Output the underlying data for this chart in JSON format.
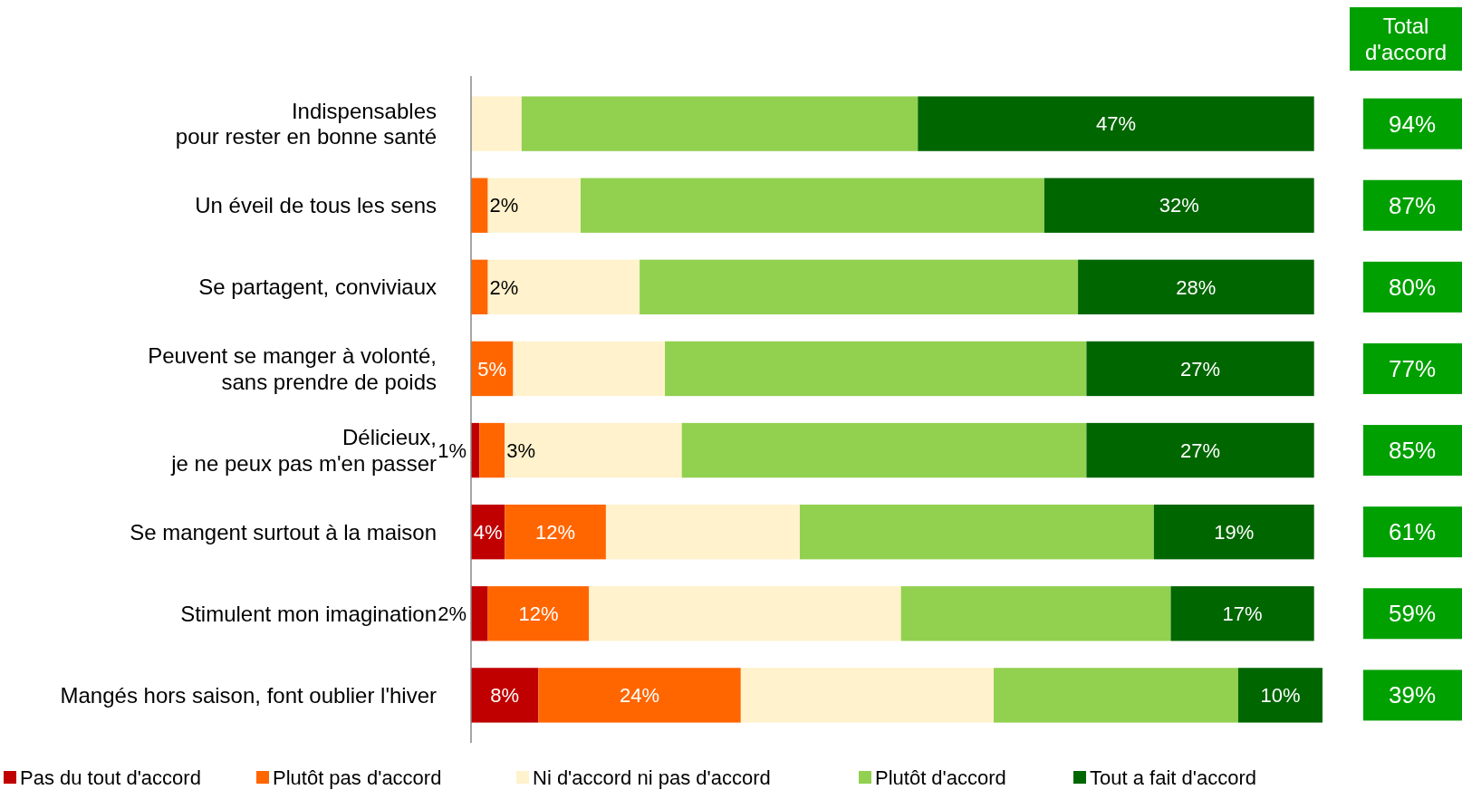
{
  "chart_data": {
    "type": "bar",
    "orientation": "horizontal",
    "stacked": true,
    "legend": "bottom",
    "categories": [
      "Indispensables\npour rester en bonne santé",
      "Un éveil de tous les sens",
      "Se partagent, conviviaux",
      "Peuvent se manger à volonté,\nsans prendre de poids",
      "Délicieux,\nje ne peux pas m'en passer",
      "Se mangent surtout à la maison",
      "Stimulent mon imagination",
      "Mangés hors saison, font oublier l'hiver"
    ],
    "series": [
      {
        "name": "Pas du tout d'accord",
        "color": "#c00000",
        "values": [
          0,
          0,
          0,
          0,
          1,
          4,
          2,
          8
        ],
        "value_labels": [
          null,
          null,
          null,
          null,
          "1%",
          "4%",
          "2%",
          "8%"
        ]
      },
      {
        "name": "Plutôt pas d'accord",
        "color": "#ff6600",
        "values": [
          0,
          2,
          2,
          5,
          3,
          12,
          12,
          24
        ],
        "value_labels": [
          null,
          "2%",
          "2%",
          "5%",
          "3%",
          "12%",
          "12%",
          "24%"
        ]
      },
      {
        "name": "Ni d'accord ni pas d'accord",
        "color": "#fff2cc",
        "values": [
          6,
          11,
          18,
          18,
          21,
          23,
          37,
          30
        ]
      },
      {
        "name": "Plutôt d'accord",
        "color": "#92d050",
        "values": [
          47,
          55,
          52,
          50,
          48,
          42,
          32,
          29
        ]
      },
      {
        "name": "Tout a fait d'accord",
        "color": "#006600",
        "values": [
          47,
          32,
          28,
          27,
          27,
          19,
          17,
          10
        ],
        "value_labels": [
          "47%",
          "32%",
          "28%",
          "27%",
          "27%",
          "19%",
          "17%",
          "10%"
        ]
      }
    ],
    "annotations": [
      "Total\nd'accord",
      "94%",
      "87%",
      "80%",
      "77%",
      "85%",
      "61%",
      "59%",
      "39%"
    ]
  }
}
